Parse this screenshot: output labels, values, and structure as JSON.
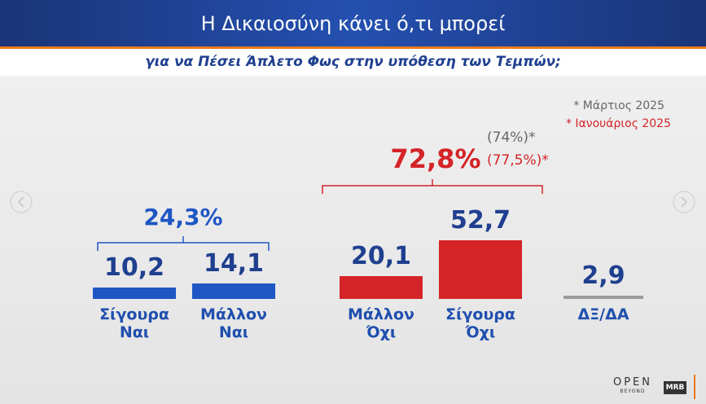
{
  "chart_data": {
    "type": "bar",
    "title": "Η Δικαιοσύνη κάνει ό,τι μπορεί",
    "subtitle": "για να Πέσει Άπλετο Φως στην υπόθεση των Τεμπών;",
    "categories": [
      "Σίγουρα Ναι",
      "Μάλλον Ναι",
      "Μάλλον Όχι",
      "Σίγουρα Όχι",
      "ΔΞ/ΔΑ"
    ],
    "values": [
      10.2,
      14.1,
      20.1,
      52.7,
      2.9
    ],
    "value_labels": [
      "10,2",
      "14,1",
      "20,1",
      "52,7",
      "2,9"
    ],
    "colors": [
      "#1e56c4",
      "#1e56c4",
      "#d42427",
      "#d42427",
      "#9a9a9a"
    ],
    "label_colors": [
      "#1f3f8f",
      "#1f3f8f",
      "#1f3f8f",
      "#1f3f8f",
      "#1f3f8f"
    ],
    "annotations": {
      "yes_total": "24,3%",
      "no_total": "72,8%",
      "no_march": "(74%)*",
      "no_january": "(77,5%)*"
    },
    "legend": [
      "* Μάρτιος 2025",
      "* Ιανουάριος 2025"
    ]
  },
  "logos": {
    "channel": "OPEN",
    "channel_sub": "BEYOND",
    "pollster": "MRB"
  }
}
